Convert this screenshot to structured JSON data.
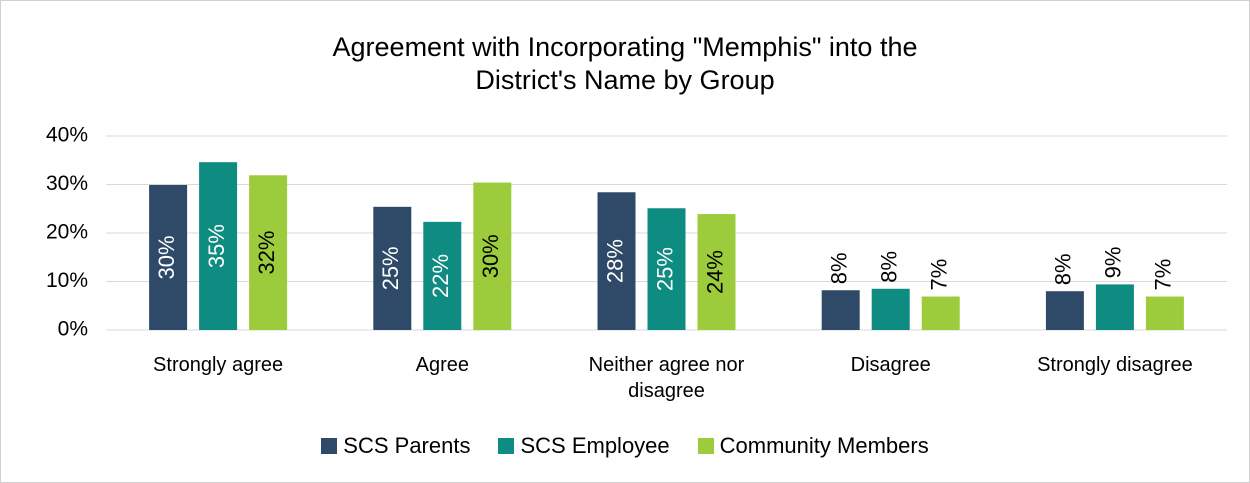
{
  "chart_data": {
    "type": "bar",
    "title": "Agreement with Incorporating \"Memphis\" into the District's Name by Group",
    "categories": [
      "Strongly agree",
      "Agree",
      "Neither agree nor disagree",
      "Disagree",
      "Strongly disagree"
    ],
    "series": [
      {
        "name": "SCS Parents",
        "color": "#2f4a69",
        "values": [
          29.9,
          25.4,
          28.4,
          8.2,
          8.0
        ],
        "value_labels": [
          "30%",
          "25%",
          "28%",
          "8%",
          "8%"
        ]
      },
      {
        "name": "SCS Employee",
        "color": "#0e8c82",
        "values": [
          34.6,
          22.3,
          25.1,
          8.5,
          9.4
        ],
        "value_labels": [
          "35%",
          "22%",
          "25%",
          "8%",
          "9%"
        ]
      },
      {
        "name": "Community Members",
        "color": "#9ccb3b",
        "values": [
          31.9,
          30.4,
          23.9,
          6.9,
          6.9
        ],
        "value_labels": [
          "32%",
          "30%",
          "24%",
          "7%",
          "7%"
        ]
      }
    ],
    "ylim": [
      0,
      40
    ],
    "yticks": [
      {
        "value": 0,
        "label": "0%"
      },
      {
        "value": 10,
        "label": "10%"
      },
      {
        "value": 20,
        "label": "20%"
      },
      {
        "value": 30,
        "label": "30%"
      },
      {
        "value": 40,
        "label": "40%"
      }
    ],
    "grid": true,
    "legend": "bottom"
  }
}
